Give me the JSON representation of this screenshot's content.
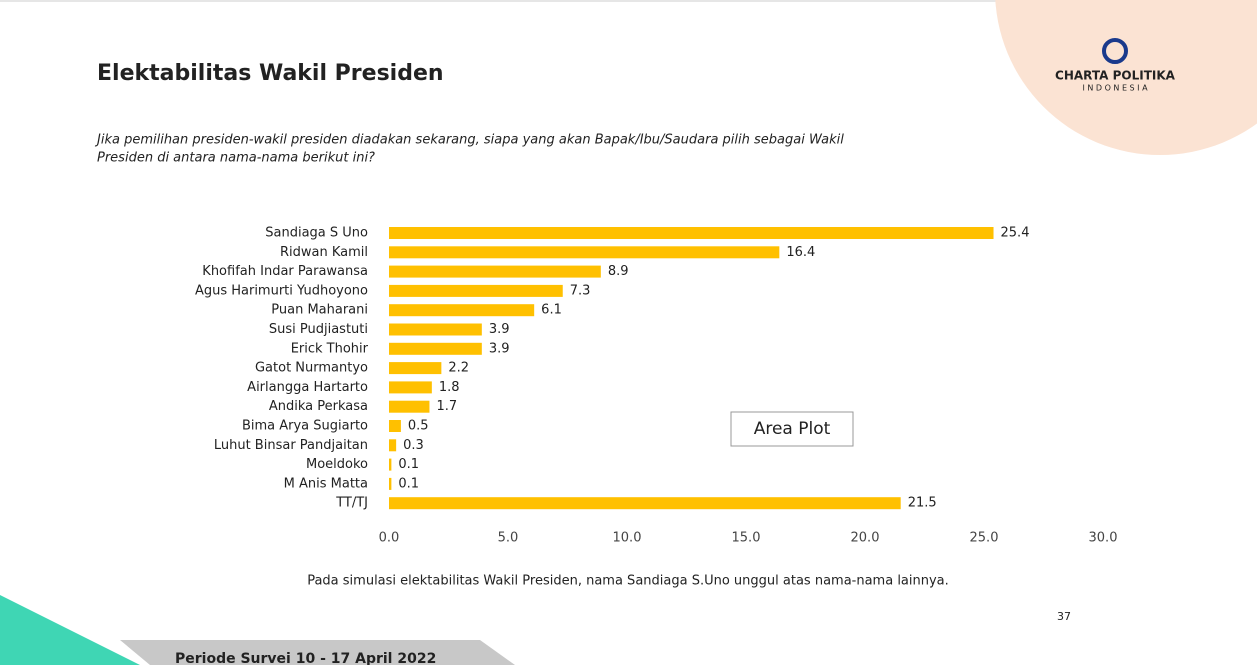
{
  "header": {
    "title": "Elektabilitas Wakil Presiden",
    "logo": "CHARTA POLITIKA",
    "logo_sub": "I N D O N E S I A"
  },
  "question": [
    "Jika pemilihan presiden-wakil presiden diadakan sekarang, siapa yang akan Bapak/Ibu/Saudara pilih sebagai Wakil",
    "Presiden di antara nama-nama berikut ini?"
  ],
  "chart_data": {
    "type": "bar",
    "orientation": "horizontal",
    "color": "#FFC000",
    "categories": [
      "Sandiaga S Uno",
      "Ridwan Kamil",
      "Khofifah Indar Parawansa",
      "Agus Harimurti Yudhoyono",
      "Puan Maharani",
      "Susi Pudjiastuti",
      "Erick Thohir",
      "Gatot Nurmantyo",
      "Airlangga Hartarto",
      "Andika Perkasa",
      "Bima Arya Sugiarto",
      "Luhut Binsar Pandjaitan",
      "Moeldoko",
      "M Anis Matta",
      "TT/TJ"
    ],
    "values": [
      25.4,
      16.4,
      8.9,
      7.3,
      6.1,
      3.9,
      3.9,
      2.2,
      1.8,
      1.7,
      0.5,
      0.3,
      0.1,
      0.1,
      21.5
    ],
    "xlim": [
      0,
      30
    ],
    "xticks": [
      {
        "value": 0,
        "label": "0.0"
      },
      {
        "value": 5,
        "label": "5.0"
      },
      {
        "value": 10,
        "label": "10.0"
      },
      {
        "value": 15,
        "label": "15.0"
      },
      {
        "value": 20,
        "label": "20.0"
      },
      {
        "value": 25,
        "label": "25.0"
      },
      {
        "value": 30,
        "label": "30.0"
      }
    ],
    "tooltip": "Area Plot"
  },
  "footnote": "Pada simulasi elektabilitas Wakil Presiden, nama Sandiaga S.Uno unggul atas nama-nama lainnya.",
  "footer": {
    "period": "Periode Survei 10 - 17 April 2022",
    "page": "37"
  }
}
